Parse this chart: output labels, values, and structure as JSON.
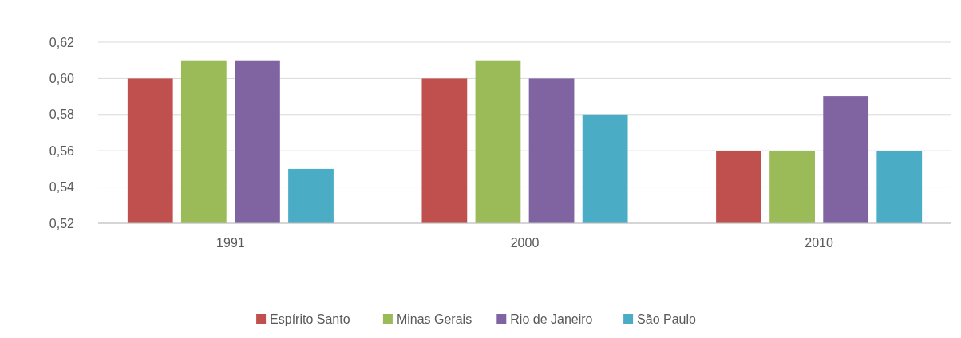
{
  "chart_data": {
    "type": "bar",
    "categories": [
      "1991",
      "2000",
      "2010"
    ],
    "series": [
      {
        "name": "Espírito Santo",
        "color": "#c0504d",
        "values": [
          0.6,
          0.6,
          0.56
        ]
      },
      {
        "name": "Minas Gerais",
        "color": "#9bbb59",
        "values": [
          0.61,
          0.61,
          0.56
        ]
      },
      {
        "name": "Rio de Janeiro",
        "color": "#8064a2",
        "values": [
          0.61,
          0.6,
          0.59
        ]
      },
      {
        "name": "São Paulo",
        "color": "#4bacc6",
        "values": [
          0.55,
          0.58,
          0.56
        ]
      }
    ],
    "ylim": [
      0.52,
      0.62
    ],
    "yticks": [
      {
        "value": 0.52,
        "label": "0,52"
      },
      {
        "value": 0.54,
        "label": "0,54"
      },
      {
        "value": 0.56,
        "label": "0,56"
      },
      {
        "value": 0.58,
        "label": "0,58"
      },
      {
        "value": 0.6,
        "label": "0,60"
      },
      {
        "value": 0.62,
        "label": "0,62"
      }
    ],
    "grid": "y",
    "legend": "bottom"
  }
}
